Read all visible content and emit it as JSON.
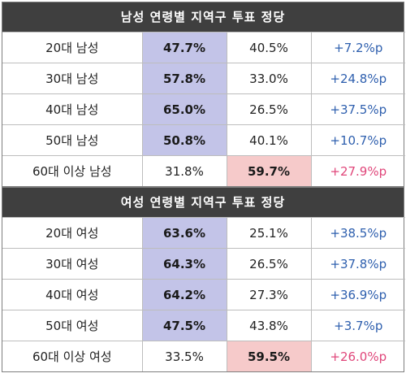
{
  "sections": [
    {
      "title": "남성 연령별 지역구 투표 정당",
      "rows": [
        {
          "label": "20대 남성",
          "a": "47.7%",
          "b": "40.5%",
          "diff": "+7.2%p",
          "lead": "a"
        },
        {
          "label": "30대 남성",
          "a": "57.8%",
          "b": "33.0%",
          "diff": "+24.8%p",
          "lead": "a"
        },
        {
          "label": "40대 남성",
          "a": "65.0%",
          "b": "26.5%",
          "diff": "+37.5%p",
          "lead": "a"
        },
        {
          "label": "50대 남성",
          "a": "50.8%",
          "b": "40.1%",
          "diff": "+10.7%p",
          "lead": "a"
        },
        {
          "label": "60대 이상 남성",
          "a": "31.8%",
          "b": "59.7%",
          "diff": "+27.9%p",
          "lead": "b"
        }
      ]
    },
    {
      "title": "여성 연령별 지역구 투표 정당",
      "rows": [
        {
          "label": "20대 여성",
          "a": "63.6%",
          "b": "25.1%",
          "diff": "+38.5%p",
          "lead": "a"
        },
        {
          "label": "30대 여성",
          "a": "64.3%",
          "b": "26.5%",
          "diff": "+37.8%p",
          "lead": "a"
        },
        {
          "label": "40대 여성",
          "a": "64.2%",
          "b": "27.3%",
          "diff": "+36.9%p",
          "lead": "a"
        },
        {
          "label": "50대 여성",
          "a": "47.5%",
          "b": "43.8%",
          "diff": "+3.7%p",
          "lead": "a"
        },
        {
          "label": "60대 이상 여성",
          "a": "33.5%",
          "b": "59.5%",
          "diff": "+26.0%p",
          "lead": "b"
        }
      ]
    }
  ],
  "colors": {
    "header_bg": "#3f3f3f",
    "lead_a_bg": "#c3c4e8",
    "lead_b_bg": "#f6caca",
    "diff_a": "#2e5fae",
    "diff_b": "#e0467a"
  }
}
